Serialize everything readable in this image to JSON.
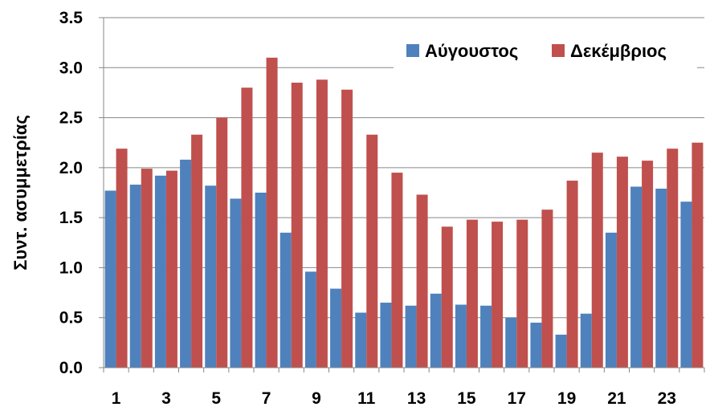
{
  "chart_data": {
    "type": "bar",
    "title": "",
    "xlabel": "",
    "ylabel": "Συντ. ασυμμετρίας",
    "ylim": [
      0,
      3.5
    ],
    "yticks": [
      "0.0",
      "0.5",
      "1.0",
      "1.5",
      "2.0",
      "2.5",
      "3.0",
      "3.5"
    ],
    "x_tick_labels": [
      "1",
      "3",
      "5",
      "7",
      "9",
      "11",
      "13",
      "15",
      "17",
      "19",
      "21",
      "23"
    ],
    "categories": [
      1,
      2,
      3,
      4,
      5,
      6,
      7,
      8,
      9,
      10,
      11,
      12,
      13,
      14,
      15,
      16,
      17,
      18,
      19,
      20,
      21,
      22,
      23,
      24
    ],
    "series": [
      {
        "name": "Αύγουστος",
        "color": "#4F81BD",
        "values": [
          1.77,
          1.83,
          1.92,
          2.08,
          1.82,
          1.69,
          1.75,
          1.35,
          0.96,
          0.79,
          0.55,
          0.65,
          0.62,
          0.74,
          0.63,
          0.62,
          0.5,
          0.45,
          0.33,
          0.54,
          1.35,
          1.81,
          1.79,
          1.66
        ]
      },
      {
        "name": "Δεκέμβριος",
        "color": "#C0504D",
        "values": [
          2.19,
          1.99,
          1.97,
          2.33,
          2.5,
          2.8,
          3.1,
          2.85,
          2.88,
          2.78,
          2.33,
          1.95,
          1.73,
          1.41,
          1.48,
          1.46,
          1.48,
          1.58,
          1.87,
          2.15,
          2.11,
          2.07,
          2.19,
          2.25
        ]
      }
    ],
    "grid": true,
    "legend_position": "top-right"
  }
}
